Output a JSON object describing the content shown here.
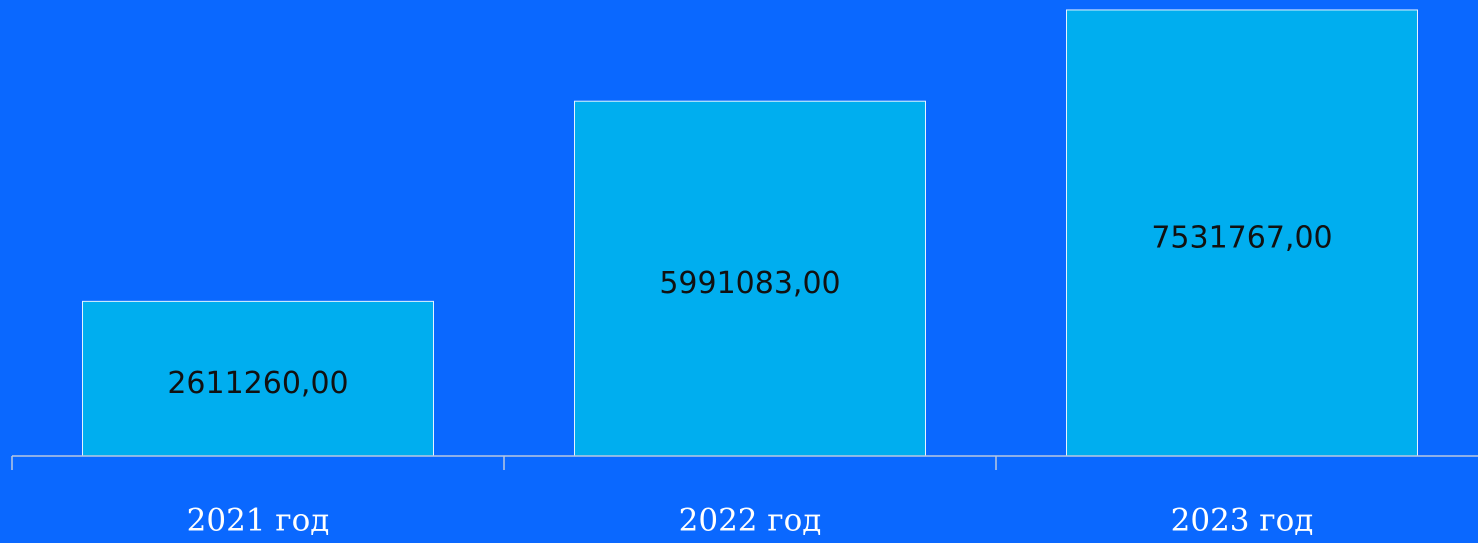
{
  "chart_data": {
    "type": "bar",
    "categories": [
      "2021 год",
      "2022 год",
      "2023 год"
    ],
    "values": [
      2611260,
      5991083,
      7531767
    ],
    "value_labels": [
      "2611260,00",
      "5991083,00",
      "7531767,00"
    ],
    "color": "#00aeef",
    "ylim": [
      0,
      7700000
    ]
  }
}
